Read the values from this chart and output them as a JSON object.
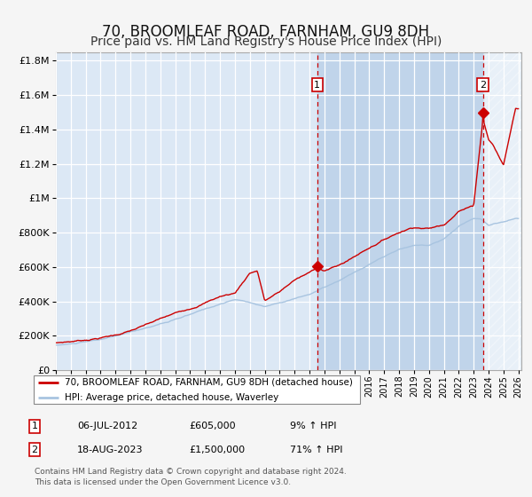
{
  "title": "70, BROOMLEAF ROAD, FARNHAM, GU9 8DH",
  "subtitle": "Price paid vs. HM Land Registry's House Price Index (HPI)",
  "ylabel_ticks": [
    "£0",
    "£200K",
    "£400K",
    "£600K",
    "£800K",
    "£1M",
    "£1.2M",
    "£1.4M",
    "£1.6M",
    "£1.8M"
  ],
  "ytick_values": [
    0,
    200000,
    400000,
    600000,
    800000,
    1000000,
    1200000,
    1400000,
    1600000,
    1800000
  ],
  "x_start_year": 1995,
  "x_end_year": 2026,
  "sale1_date": 2012.52,
  "sale1_price": 605000,
  "sale2_date": 2023.63,
  "sale2_price": 1500000,
  "legend_line1": "70, BROOMLEAF ROAD, FARNHAM, GU9 8DH (detached house)",
  "legend_line2": "HPI: Average price, detached house, Waverley",
  "table_row1": [
    "1",
    "06-JUL-2012",
    "£605,000",
    "9% ↑ HPI"
  ],
  "table_row2": [
    "2",
    "18-AUG-2023",
    "£1,500,000",
    "71% ↑ HPI"
  ],
  "footer": "Contains HM Land Registry data © Crown copyright and database right 2024.\nThis data is licensed under the Open Government Licence v3.0.",
  "hpi_color": "#a8c4e0",
  "property_color": "#cc0000",
  "bg_plot_color": "#dce8f5",
  "bg_shade_color": "#c0d4ea",
  "grid_color": "#ffffff",
  "title_fontsize": 12,
  "subtitle_fontsize": 10,
  "hpi_key_years": [
    1995,
    1996,
    1997,
    1998,
    1999,
    2000,
    2001,
    2002,
    2003,
    2004,
    2005,
    2006,
    2007,
    2008,
    2009,
    2010,
    2011,
    2012,
    2013,
    2014,
    2015,
    2016,
    2017,
    2018,
    2019,
    2020,
    2021,
    2022,
    2023,
    2023.5,
    2024,
    2025,
    2025.8
  ],
  "hpi_key_vals": [
    145000,
    152000,
    162000,
    175000,
    192000,
    215000,
    238000,
    265000,
    288000,
    315000,
    345000,
    375000,
    400000,
    385000,
    360000,
    385000,
    410000,
    435000,
    475000,
    510000,
    555000,
    600000,
    645000,
    685000,
    710000,
    710000,
    750000,
    820000,
    870000,
    865000,
    830000,
    850000,
    870000
  ],
  "prop_key_years": [
    1995,
    1996,
    1997,
    1998,
    1999,
    2000,
    2001,
    2002,
    2003,
    2004,
    2005,
    2006,
    2007,
    2008,
    2008.5,
    2009,
    2010,
    2011,
    2012,
    2012.52,
    2013,
    2014,
    2015,
    2016,
    2017,
    2018,
    2019,
    2020,
    2021,
    2022,
    2023,
    2023.63,
    2024,
    2024.3,
    2025,
    2025.8
  ],
  "prop_key_vals": [
    158000,
    167000,
    178000,
    193000,
    210000,
    235000,
    265000,
    298000,
    328000,
    360000,
    398000,
    435000,
    455000,
    575000,
    590000,
    415000,
    465000,
    535000,
    575000,
    605000,
    590000,
    620000,
    670000,
    725000,
    775000,
    820000,
    855000,
    850000,
    870000,
    960000,
    990000,
    1500000,
    1380000,
    1350000,
    1230000,
    1560000
  ]
}
